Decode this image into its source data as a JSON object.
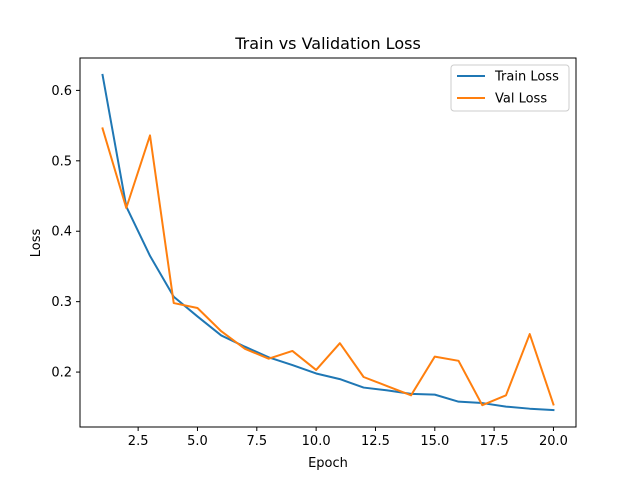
{
  "chart_data": {
    "type": "line",
    "title": "Train vs Validation Loss",
    "xlabel": "Epoch",
    "ylabel": "Loss",
    "xlim": [
      0.05,
      20.95
    ],
    "ylim": [
      0.122,
      0.646
    ],
    "xticks": [
      2.5,
      5.0,
      7.5,
      10.0,
      12.5,
      15.0,
      17.5,
      20.0
    ],
    "xtick_labels": [
      "2.5",
      "5.0",
      "7.5",
      "10.0",
      "12.5",
      "15.0",
      "17.5",
      "20.0"
    ],
    "yticks": [
      0.2,
      0.3,
      0.4,
      0.5,
      0.6
    ],
    "ytick_labels": [
      "0.2",
      "0.3",
      "0.4",
      "0.5",
      "0.6"
    ],
    "grid": false,
    "legend_position": "top-right",
    "x": [
      1,
      2,
      3,
      4,
      5,
      6,
      7,
      8,
      9,
      10,
      11,
      12,
      13,
      14,
      15,
      16,
      17,
      18,
      19,
      20
    ],
    "series": [
      {
        "name": "Train Loss",
        "color": "#1f77b4",
        "values": [
          0.622,
          0.435,
          0.365,
          0.307,
          0.279,
          0.252,
          0.236,
          0.221,
          0.21,
          0.198,
          0.19,
          0.178,
          0.174,
          0.169,
          0.168,
          0.158,
          0.156,
          0.151,
          0.148,
          0.146
        ]
      },
      {
        "name": "Val Loss",
        "color": "#ff7f0e",
        "values": [
          0.546,
          0.433,
          0.536,
          0.298,
          0.291,
          0.258,
          0.233,
          0.219,
          0.23,
          0.203,
          0.241,
          0.193,
          0.18,
          0.167,
          0.222,
          0.216,
          0.153,
          0.167,
          0.254,
          0.154
        ]
      }
    ]
  }
}
